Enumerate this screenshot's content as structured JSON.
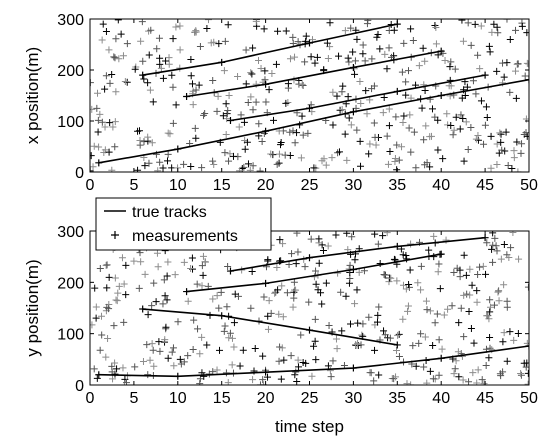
{
  "chart_data": [
    {
      "type": "scatter",
      "panel": "top",
      "xlabel": "",
      "ylabel": "x position(m)",
      "xlim": [
        0,
        50
      ],
      "ylim": [
        0,
        300
      ],
      "xticks": [
        0,
        5,
        10,
        15,
        20,
        25,
        30,
        35,
        40,
        45,
        50
      ],
      "yticks": [
        0,
        100,
        200,
        300
      ],
      "grid": false,
      "series": [
        {
          "kind": "line",
          "color": "#000000",
          "tracks": [
            {
              "x": [
                1,
                10,
                20,
                30,
                40,
                50
              ],
              "y": [
                18,
                45,
                80,
                118,
                150,
                181
              ]
            },
            {
              "x": [
                6,
                15,
                25,
                35
              ],
              "y": [
                190,
                215,
                253,
                290
              ]
            },
            {
              "x": [
                11,
                20,
                30,
                40
              ],
              "y": [
                148,
                172,
                205,
                237
              ]
            },
            {
              "x": [
                16,
                25,
                35,
                45
              ],
              "y": [
                101,
                125,
                158,
                190
              ]
            }
          ]
        },
        {
          "kind": "marker",
          "marker": "+",
          "colors": [
            "#000000",
            "#555555",
            "#8c8c8c"
          ],
          "count": 460,
          "seed": 7
        }
      ]
    },
    {
      "type": "scatter",
      "panel": "bottom",
      "xlabel": "time step",
      "ylabel": "y position(m)",
      "xlim": [
        0,
        50
      ],
      "ylim": [
        0,
        300
      ],
      "xticks": [
        0,
        5,
        10,
        15,
        20,
        25,
        30,
        35,
        40,
        45,
        50
      ],
      "yticks": [
        0,
        100,
        200,
        300
      ],
      "grid": false,
      "legend": {
        "placement": "top-left",
        "entries": [
          {
            "label": "true tracks",
            "symbol": "line"
          },
          {
            "label": "measurements",
            "symbol": "+"
          }
        ]
      },
      "series": [
        {
          "kind": "line",
          "color": "#000000",
          "tracks": [
            {
              "x": [
                1,
                10,
                20,
                30,
                40,
                50
              ],
              "y": [
                20,
                17,
                25,
                33,
                52,
                76
              ]
            },
            {
              "x": [
                6,
                15,
                25,
                35
              ],
              "y": [
                148,
                135,
                107,
                78
              ]
            },
            {
              "x": [
                11,
                20,
                30,
                40
              ],
              "y": [
                182,
                198,
                225,
                255
              ]
            },
            {
              "x": [
                16,
                25,
                35,
                45
              ],
              "y": [
                222,
                248,
                270,
                287
              ]
            }
          ]
        },
        {
          "kind": "marker",
          "marker": "+",
          "colors": [
            "#000000",
            "#555555",
            "#8c8c8c"
          ],
          "count": 460,
          "seed": 23
        }
      ]
    }
  ]
}
